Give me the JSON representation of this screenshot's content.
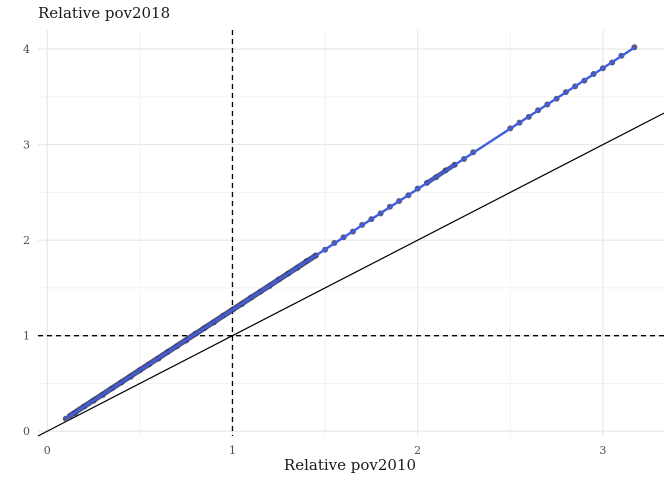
{
  "chart_data": {
    "type": "scatter",
    "title": "",
    "xlabel": "Relative pov2010",
    "ylabel": "Relative pov2018",
    "xlim": [
      -0.05,
      3.33
    ],
    "ylim": [
      -0.05,
      4.2
    ],
    "x_ticks": [
      0,
      1,
      2,
      3
    ],
    "y_ticks": [
      0,
      1,
      2,
      3,
      4
    ],
    "x_tick_labels": [
      "0",
      "1",
      "2",
      "3"
    ],
    "y_tick_labels": [
      "0",
      "1",
      "2",
      "3",
      "4"
    ],
    "grid": true,
    "reference_lines": {
      "vertical_dashed_x": 1,
      "horizontal_dashed_y": 1,
      "identity_line": true
    },
    "fit_line": {
      "slope": 1.265,
      "intercept": 0.005,
      "x_range": [
        0.1,
        3.17
      ]
    },
    "series": [
      {
        "point_color": "#3d3d6b",
        "line_color": "#3f5fe0",
        "x": [
          0.1,
          0.15,
          0.2,
          0.25,
          0.3,
          0.35,
          0.4,
          0.45,
          0.5,
          0.55,
          0.6,
          0.65,
          0.7,
          0.75,
          0.8,
          0.85,
          0.9,
          0.95,
          1.0,
          1.05,
          1.1,
          1.15,
          1.2,
          1.25,
          1.3,
          1.35,
          1.4,
          1.45,
          1.5,
          1.55,
          1.6,
          1.65,
          1.7,
          1.75,
          1.8,
          1.85,
          1.9,
          1.95,
          2.0,
          2.05,
          2.1,
          2.15,
          2.2,
          2.25,
          2.3,
          2.5,
          2.55,
          2.6,
          2.65,
          2.7,
          2.75,
          2.8,
          2.85,
          2.9,
          2.95,
          3.0,
          3.05,
          3.1,
          3.17
        ],
        "y": [
          0.13,
          0.19,
          0.26,
          0.32,
          0.38,
          0.45,
          0.51,
          0.57,
          0.64,
          0.7,
          0.76,
          0.83,
          0.89,
          0.95,
          1.02,
          1.08,
          1.14,
          1.21,
          1.27,
          1.33,
          1.4,
          1.46,
          1.52,
          1.59,
          1.65,
          1.71,
          1.78,
          1.84,
          1.9,
          1.97,
          2.03,
          2.09,
          2.16,
          2.22,
          2.28,
          2.35,
          2.41,
          2.47,
          2.54,
          2.6,
          2.66,
          2.73,
          2.79,
          2.85,
          2.92,
          3.17,
          3.23,
          3.29,
          3.36,
          3.42,
          3.48,
          3.55,
          3.61,
          3.67,
          3.74,
          3.8,
          3.86,
          3.93,
          4.02
        ]
      }
    ]
  }
}
